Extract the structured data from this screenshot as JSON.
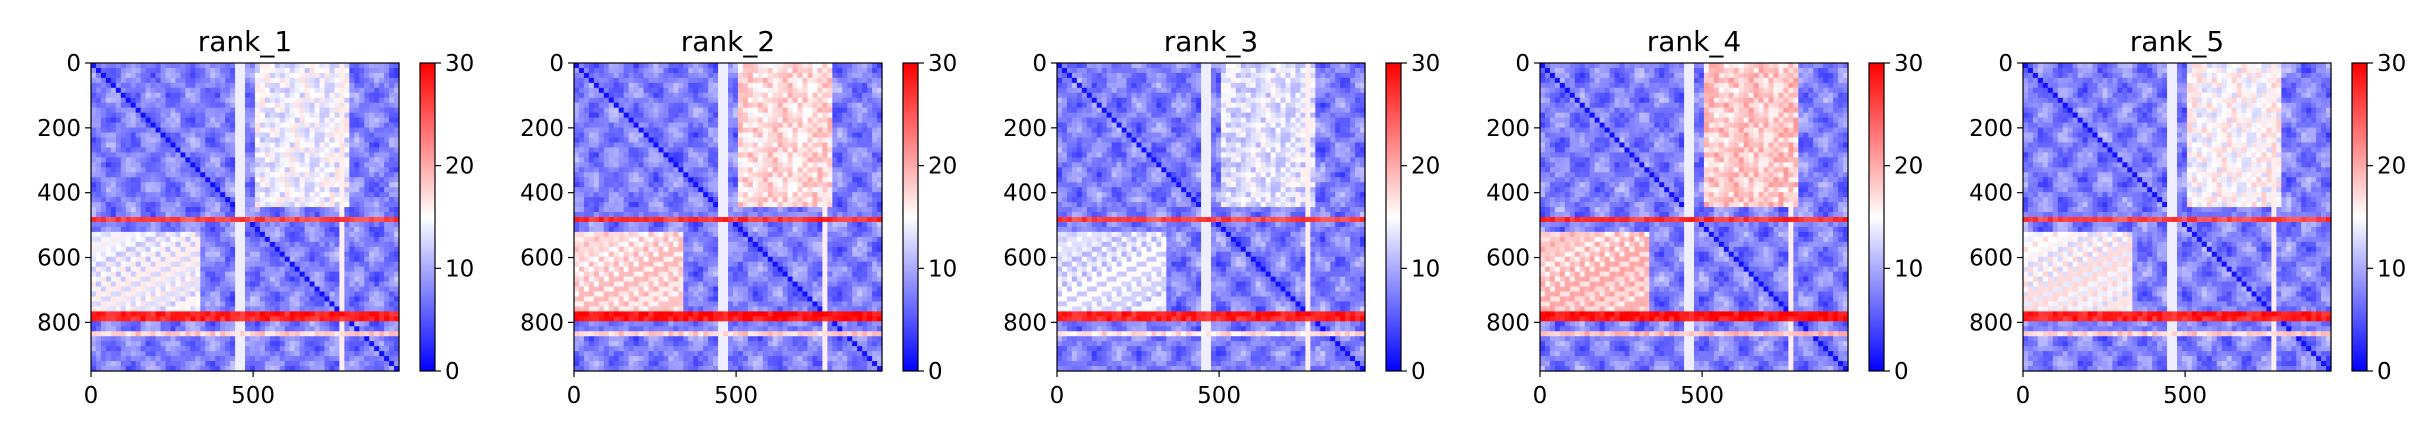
{
  "figure": {
    "colormap": [
      "#0000ff",
      "#ffffff",
      "#ff0000"
    ],
    "colorbar_ticks": [
      "0",
      "10",
      "20",
      "30"
    ],
    "colorbar_range": [
      0,
      30
    ]
  },
  "chart_data": [
    {
      "type": "heatmap",
      "title": "rank_1",
      "xlim": [
        0,
        950
      ],
      "ylim": [
        950,
        0
      ],
      "xticks": [
        "0",
        "500"
      ],
      "yticks": [
        "0",
        "200",
        "400",
        "600",
        "800"
      ],
      "hot_rows": [
        {
          "from": 470,
          "to": 495,
          "value": 27
        },
        {
          "from": 765,
          "to": 800,
          "value": 29
        },
        {
          "from": 300,
          "to": 310,
          "value": 20
        },
        {
          "from": 120,
          "to": 130,
          "value": 18
        },
        {
          "from": 830,
          "to": 840,
          "value": 19
        }
      ],
      "block_value": 15
    },
    {
      "type": "heatmap",
      "title": "rank_2",
      "xlim": [
        0,
        950
      ],
      "ylim": [
        950,
        0
      ],
      "xticks": [
        "0",
        "500"
      ],
      "yticks": [
        "0",
        "200",
        "400",
        "600",
        "800"
      ],
      "hot_rows": [
        {
          "from": 470,
          "to": 495,
          "value": 28
        },
        {
          "from": 765,
          "to": 800,
          "value": 30
        },
        {
          "from": 300,
          "to": 310,
          "value": 20
        },
        {
          "from": 120,
          "to": 130,
          "value": 18
        },
        {
          "from": 830,
          "to": 840,
          "value": 19
        }
      ],
      "block_value": 18
    },
    {
      "type": "heatmap",
      "title": "rank_3",
      "xlim": [
        0,
        950
      ],
      "ylim": [
        950,
        0
      ],
      "xticks": [
        "0",
        "500"
      ],
      "yticks": [
        "0",
        "200",
        "400",
        "600",
        "800"
      ],
      "hot_rows": [
        {
          "from": 470,
          "to": 495,
          "value": 27
        },
        {
          "from": 765,
          "to": 800,
          "value": 29
        },
        {
          "from": 300,
          "to": 310,
          "value": 19
        },
        {
          "from": 120,
          "to": 130,
          "value": 17
        },
        {
          "from": 830,
          "to": 840,
          "value": 18
        }
      ],
      "block_value": 14
    },
    {
      "type": "heatmap",
      "title": "rank_4",
      "xlim": [
        0,
        950
      ],
      "ylim": [
        950,
        0
      ],
      "xticks": [
        "0",
        "500"
      ],
      "yticks": [
        "0",
        "200",
        "400",
        "600",
        "800"
      ],
      "hot_rows": [
        {
          "from": 470,
          "to": 495,
          "value": 28
        },
        {
          "from": 765,
          "to": 800,
          "value": 30
        },
        {
          "from": 300,
          "to": 310,
          "value": 21
        },
        {
          "from": 120,
          "to": 130,
          "value": 19
        },
        {
          "from": 830,
          "to": 840,
          "value": 20
        }
      ],
      "block_value": 19
    },
    {
      "type": "heatmap",
      "title": "rank_5",
      "xlim": [
        0,
        950
      ],
      "ylim": [
        950,
        0
      ],
      "xticks": [
        "0",
        "500"
      ],
      "yticks": [
        "0",
        "200",
        "400",
        "600",
        "800"
      ],
      "hot_rows": [
        {
          "from": 470,
          "to": 495,
          "value": 27
        },
        {
          "from": 765,
          "to": 800,
          "value": 29
        },
        {
          "from": 300,
          "to": 310,
          "value": 20
        },
        {
          "from": 120,
          "to": 130,
          "value": 18
        },
        {
          "from": 830,
          "to": 840,
          "value": 19
        }
      ],
      "block_value": 16
    }
  ]
}
